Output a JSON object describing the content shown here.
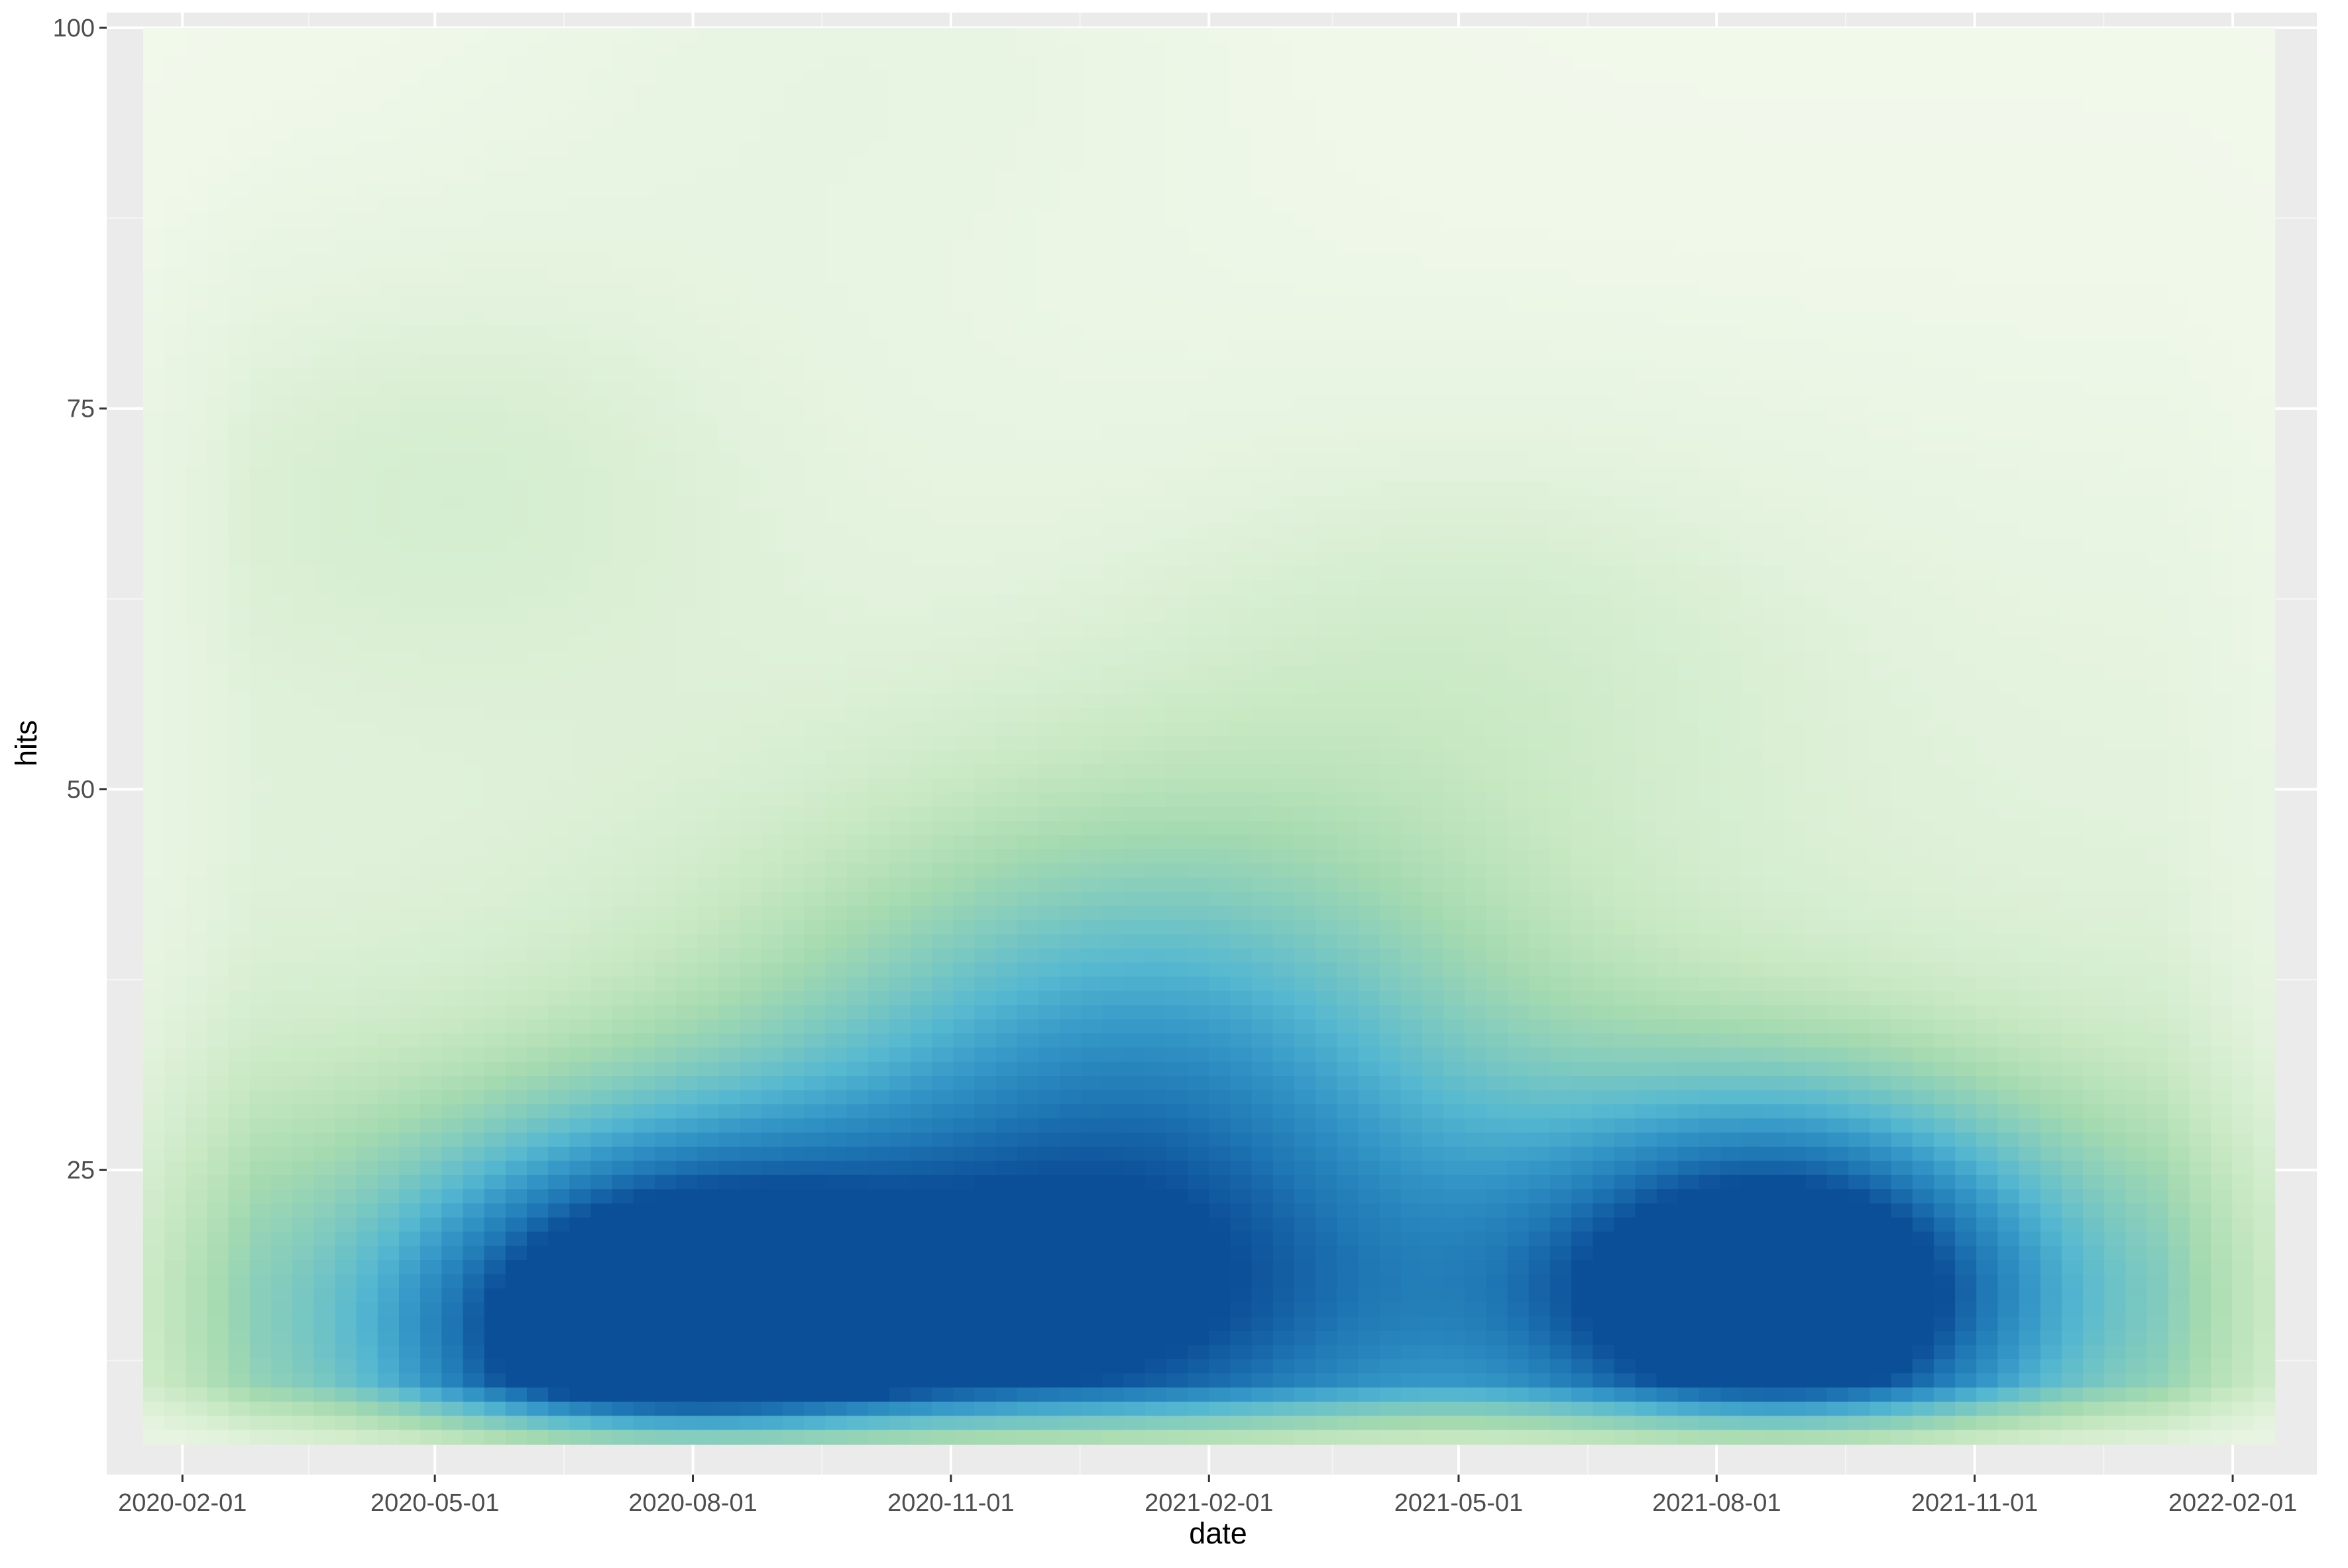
{
  "chart_data": {
    "type": "heatmap",
    "subtype": "2d-density",
    "title": "",
    "xlabel": "date",
    "ylabel": "hits",
    "x_axis_type": "date",
    "xlim": [
      "2020-01-05",
      "2022-03-03"
    ],
    "ylim": [
      5,
      101
    ],
    "data_x_range": [
      "2020-01-18",
      "2022-02-16"
    ],
    "data_y_range": [
      7,
      100
    ],
    "x_ticks": [
      "2020-02-01",
      "2020-05-01",
      "2020-08-01",
      "2020-11-01",
      "2021-02-01",
      "2021-05-01",
      "2021-08-01",
      "2021-11-01",
      "2022-02-01"
    ],
    "y_ticks": [
      25,
      50,
      75,
      100
    ],
    "grid": true,
    "legend": "none",
    "palette": [
      "#f2f9ec",
      "#e2f2dc",
      "#c7e8c2",
      "#a5dab0",
      "#7fcabf",
      "#56b8d0",
      "#3497c7",
      "#1f77b4",
      "#0c4f99"
    ],
    "colors": {
      "panel_background": "#ebebeb",
      "grid_major": "#ffffff",
      "grid_minor": "#f5f5f5",
      "tick_text": "#4d4d4d",
      "axis_title": "#000000"
    },
    "density_peaks": [
      {
        "x": "2020-07-20",
        "y": 14,
        "relative_density": 1.0
      },
      {
        "x": "2021-08-25",
        "y": 17,
        "relative_density": 1.0
      },
      {
        "x": "2020-12-25",
        "y": 14,
        "relative_density": 0.62
      },
      {
        "x": "2021-01-10",
        "y": 34,
        "relative_density": 0.5
      },
      {
        "x": "2020-05-05",
        "y": 72,
        "relative_density": 0.14
      },
      {
        "x": "2021-05-05",
        "y": 60,
        "relative_density": 0.12
      },
      {
        "x": "2020-10-01",
        "y": 98,
        "relative_density": 0.08
      }
    ]
  }
}
